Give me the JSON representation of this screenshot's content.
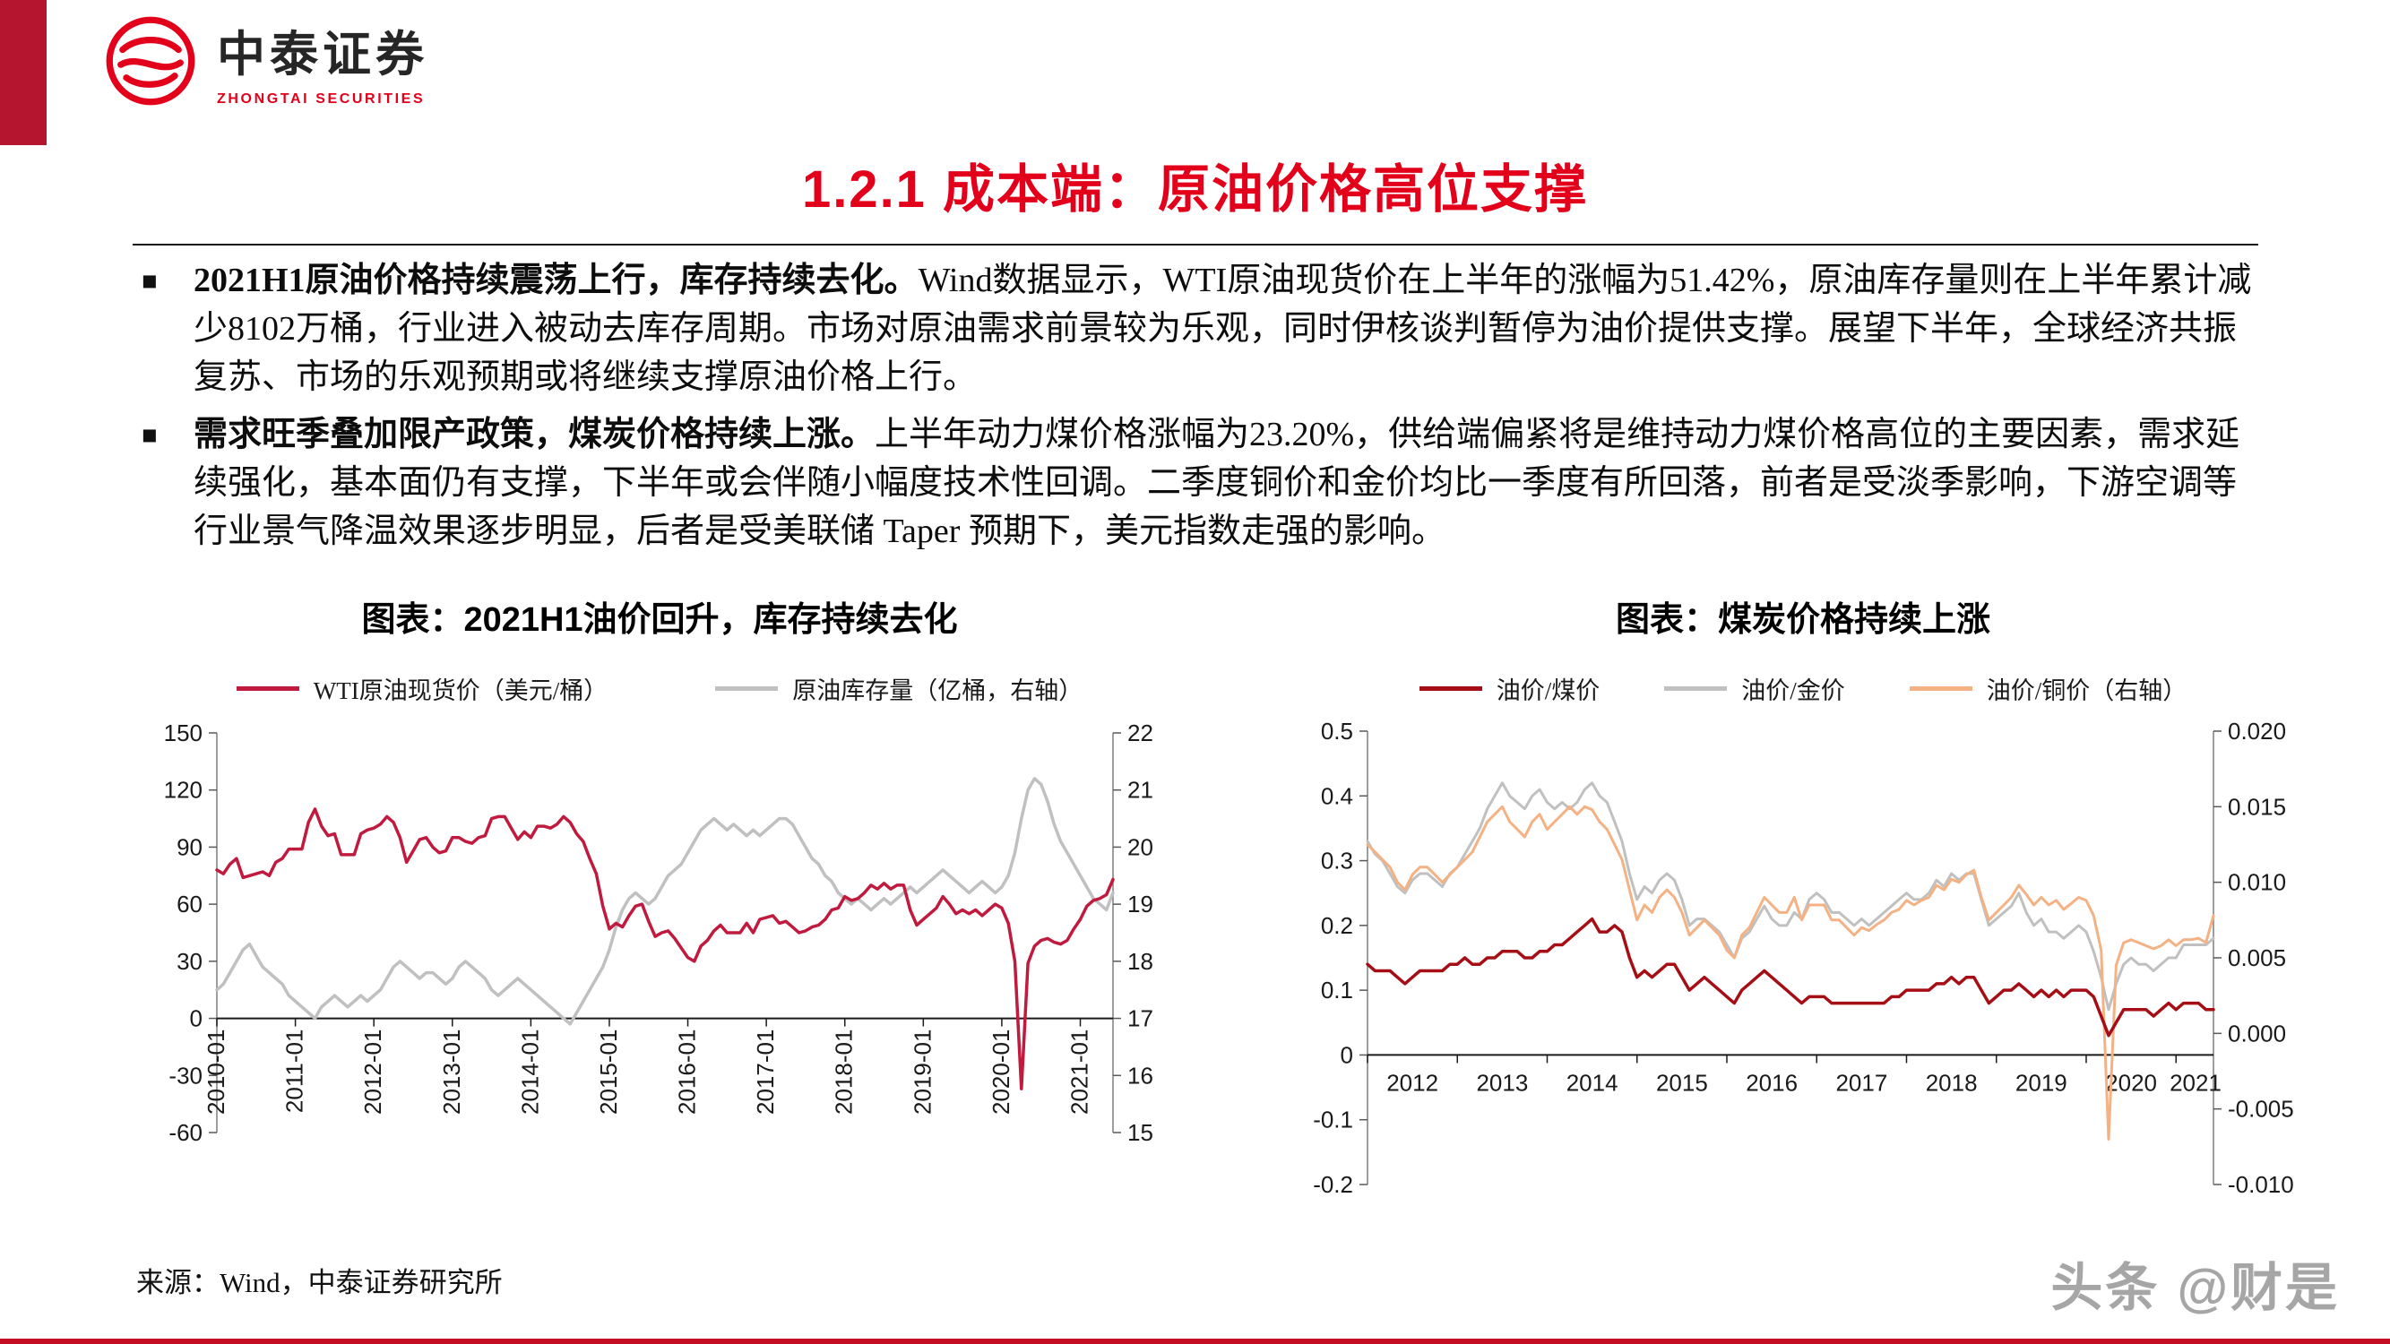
{
  "theme": {
    "accent_red": "#b5152f",
    "title_red": "#e3001b",
    "bottom_red": "#c30d23",
    "watermark_gray": "#a6a6a6"
  },
  "brand": {
    "cn": "中泰证券",
    "en": "ZHONGTAI SECURITIES"
  },
  "page": {
    "title": "1.2.1 成本端：原油价格高位支撑",
    "bullet_marker": "■",
    "source": "来源：Wind，中泰证券研究所",
    "watermark": "头条 @财是"
  },
  "bullets": [
    {
      "bold": "2021H1原油价格持续震荡上行，库存持续去化。",
      "text": "Wind数据显示，WTI原油现货价在上半年的涨幅为51.42%，原油库存量则在上半年累计减少8102万桶，行业进入被动去库存周期。市场对原油需求前景较为乐观，同时伊核谈判暂停为油价提供支撑。展望下半年，全球经济共振复苏、市场的乐观预期或将继续支撑原油价格上行。"
    },
    {
      "bold": "需求旺季叠加限产政策，煤炭价格持续上涨。",
      "text": "上半年动力煤价格涨幅为23.20%，供给端偏紧将是维持动力煤价格高位的主要因素，需求延续强化，基本面仍有支撑，下半年或会伴随小幅度技术性回调。二季度铜价和金价均比一季度有所回落，前者是受淡季影响，下游空调等行业景气降温效果逐步明显，后者是受美联储 Taper 预期下，美元指数走强的影响。"
    }
  ],
  "chart_data": [
    {
      "type": "line",
      "title": "图表：2021H1油价回升，库存持续去化",
      "x_range": {
        "start": "2010-01",
        "end": "2021-06",
        "freq": "monthly"
      },
      "rotate_x_labels": true,
      "center_x_labels": false,
      "grid": false,
      "legend": [
        {
          "label": "WTI原油现货价（美元/桶）",
          "color": "#c01a3e"
        },
        {
          "label": "原油库存量（亿桶，右轴）",
          "color": "#c0c0c0"
        }
      ],
      "axes": {
        "left": {
          "min": -60,
          "max": 150,
          "ticks": [
            "150",
            "120",
            "90",
            "60",
            "30",
            "0",
            "-30",
            "-60"
          ]
        },
        "right": {
          "min": 15,
          "max": 22,
          "ticks": [
            "22",
            "21",
            "20",
            "19",
            "18",
            "17",
            "16",
            "15"
          ]
        }
      },
      "x_ticks": [
        {
          "label": "2010-01",
          "i": 0
        },
        {
          "label": "2011-01",
          "i": 12
        },
        {
          "label": "2012-01",
          "i": 24
        },
        {
          "label": "2013-01",
          "i": 36
        },
        {
          "label": "2014-01",
          "i": 48
        },
        {
          "label": "2015-01",
          "i": 60
        },
        {
          "label": "2016-01",
          "i": 72
        },
        {
          "label": "2017-01",
          "i": 84
        },
        {
          "label": "2018-01",
          "i": 96
        },
        {
          "label": "2019-01",
          "i": 108
        },
        {
          "label": "2020-01",
          "i": 120
        },
        {
          "label": "2021-01",
          "i": 132
        }
      ],
      "series": [
        {
          "name": "原油库存量（亿桶，右轴）",
          "axis": "right",
          "color": "#c0c0c0",
          "width": 3.5,
          "values": [
            17.5,
            17.6,
            17.8,
            18.0,
            18.2,
            18.3,
            18.1,
            17.9,
            17.8,
            17.7,
            17.6,
            17.4,
            17.3,
            17.2,
            17.1,
            17.0,
            17.2,
            17.3,
            17.4,
            17.3,
            17.2,
            17.3,
            17.4,
            17.3,
            17.4,
            17.5,
            17.7,
            17.9,
            18.0,
            17.9,
            17.8,
            17.7,
            17.8,
            17.8,
            17.7,
            17.6,
            17.7,
            17.9,
            18.0,
            17.9,
            17.8,
            17.7,
            17.5,
            17.4,
            17.5,
            17.6,
            17.7,
            17.6,
            17.5,
            17.4,
            17.3,
            17.2,
            17.1,
            17.0,
            16.9,
            17.1,
            17.3,
            17.5,
            17.7,
            17.9,
            18.2,
            18.6,
            18.9,
            19.1,
            19.2,
            19.1,
            19.0,
            19.1,
            19.3,
            19.5,
            19.6,
            19.7,
            19.9,
            20.1,
            20.3,
            20.4,
            20.5,
            20.4,
            20.3,
            20.4,
            20.3,
            20.2,
            20.3,
            20.2,
            20.3,
            20.4,
            20.5,
            20.5,
            20.4,
            20.2,
            20.0,
            19.8,
            19.7,
            19.5,
            19.4,
            19.2,
            19.1,
            19.0,
            19.1,
            19.0,
            18.9,
            19.0,
            19.1,
            19.0,
            19.1,
            19.2,
            19.3,
            19.2,
            19.3,
            19.4,
            19.5,
            19.6,
            19.5,
            19.4,
            19.3,
            19.2,
            19.3,
            19.4,
            19.3,
            19.2,
            19.3,
            19.5,
            19.9,
            20.5,
            21.0,
            21.2,
            21.1,
            20.8,
            20.4,
            20.1,
            19.9,
            19.7,
            19.5,
            19.3,
            19.1,
            19.0,
            18.9,
            19.2
          ]
        },
        {
          "name": "WTI原油现货价（美元/桶）",
          "axis": "left",
          "color": "#c01a3e",
          "width": 3.5,
          "values": [
            78,
            76,
            81,
            84,
            74,
            75,
            76,
            77,
            75,
            82,
            84,
            89,
            89,
            89,
            103,
            110,
            101,
            96,
            97,
            86,
            86,
            86,
            97,
            99,
            100,
            102,
            106,
            103,
            95,
            82,
            88,
            94,
            95,
            90,
            87,
            88,
            95,
            95,
            93,
            92,
            95,
            96,
            105,
            106,
            106,
            100,
            94,
            98,
            95,
            101,
            101,
            100,
            102,
            106,
            103,
            97,
            93,
            84,
            76,
            59,
            47,
            50,
            48,
            54,
            59,
            60,
            51,
            43,
            45,
            46,
            42,
            37,
            32,
            30,
            38,
            41,
            46,
            49,
            45,
            45,
            45,
            50,
            45,
            52,
            53,
            54,
            50,
            51,
            48,
            45,
            46,
            48,
            49,
            52,
            57,
            58,
            64,
            62,
            63,
            66,
            70,
            68,
            71,
            68,
            70,
            70,
            57,
            49,
            52,
            55,
            58,
            64,
            60,
            55,
            57,
            55,
            57,
            54,
            57,
            60,
            58,
            50,
            30,
            -37,
            29,
            38,
            41,
            42,
            40,
            39,
            41,
            47,
            52,
            59,
            62,
            63,
            65,
            73
          ]
        }
      ]
    },
    {
      "type": "line",
      "title": "图表：煤炭价格持续上涨",
      "x_range": {
        "start": "2012-01",
        "end": "2021-06",
        "freq": "monthly"
      },
      "rotate_x_labels": false,
      "center_x_labels": true,
      "grid": false,
      "legend": [
        {
          "label": "油价/煤价",
          "color": "#a60e15"
        },
        {
          "label": "油价/金价",
          "color": "#c0c0c0"
        },
        {
          "label": "油价/铜价（右轴）",
          "color": "#f4b183"
        }
      ],
      "axes": {
        "left": {
          "min": -0.2,
          "max": 0.5,
          "ticks": [
            "0.5",
            "0.4",
            "0.3",
            "0.2",
            "0.1",
            "0",
            "-0.1",
            "-0.2"
          ]
        },
        "right": {
          "min": -0.01,
          "max": 0.02,
          "ticks": [
            "0.020",
            "0.015",
            "0.010",
            "0.005",
            "0.000",
            "-0.005",
            "-0.010"
          ]
        }
      },
      "x_ticks": [
        {
          "label": "2012",
          "i": 0
        },
        {
          "label": "2013",
          "i": 12
        },
        {
          "label": "2014",
          "i": 24
        },
        {
          "label": "2015",
          "i": 36
        },
        {
          "label": "2016",
          "i": 48
        },
        {
          "label": "2017",
          "i": 60
        },
        {
          "label": "2018",
          "i": 72
        },
        {
          "label": "2019",
          "i": 84
        },
        {
          "label": "2020",
          "i": 96
        },
        {
          "label": "2021",
          "i": 108
        }
      ],
      "series": [
        {
          "name": "油价/金价",
          "axis": "left",
          "color": "#c0c0c0",
          "width": 3,
          "values": [
            0.33,
            0.31,
            0.3,
            0.28,
            0.26,
            0.25,
            0.27,
            0.28,
            0.28,
            0.27,
            0.26,
            0.28,
            0.29,
            0.31,
            0.33,
            0.35,
            0.38,
            0.4,
            0.42,
            0.4,
            0.39,
            0.38,
            0.4,
            0.41,
            0.39,
            0.38,
            0.39,
            0.38,
            0.39,
            0.41,
            0.42,
            0.4,
            0.39,
            0.36,
            0.33,
            0.28,
            0.24,
            0.26,
            0.25,
            0.27,
            0.28,
            0.27,
            0.24,
            0.2,
            0.21,
            0.21,
            0.2,
            0.19,
            0.17,
            0.15,
            0.18,
            0.19,
            0.21,
            0.23,
            0.21,
            0.2,
            0.2,
            0.22,
            0.21,
            0.24,
            0.25,
            0.24,
            0.22,
            0.22,
            0.21,
            0.2,
            0.21,
            0.2,
            0.21,
            0.22,
            0.23,
            0.24,
            0.25,
            0.24,
            0.24,
            0.25,
            0.27,
            0.26,
            0.28,
            0.27,
            0.28,
            0.28,
            0.24,
            0.2,
            0.21,
            0.22,
            0.23,
            0.25,
            0.22,
            0.2,
            0.21,
            0.19,
            0.19,
            0.18,
            0.19,
            0.2,
            0.19,
            0.16,
            0.12,
            0.07,
            0.11,
            0.14,
            0.15,
            0.14,
            0.14,
            0.13,
            0.14,
            0.15,
            0.15,
            0.17,
            0.17,
            0.17,
            0.17,
            0.18
          ]
        },
        {
          "name": "油价/铜价（右轴）",
          "axis": "right",
          "color": "#f4b183",
          "width": 3,
          "values": [
            0.0125,
            0.012,
            0.0115,
            0.011,
            0.01,
            0.0095,
            0.0105,
            0.011,
            0.011,
            0.0105,
            0.01,
            0.0105,
            0.011,
            0.0115,
            0.012,
            0.013,
            0.014,
            0.0145,
            0.015,
            0.014,
            0.0135,
            0.013,
            0.014,
            0.0145,
            0.0135,
            0.014,
            0.0145,
            0.015,
            0.0145,
            0.015,
            0.0148,
            0.014,
            0.0135,
            0.0125,
            0.0115,
            0.0095,
            0.0075,
            0.0085,
            0.008,
            0.009,
            0.0095,
            0.009,
            0.008,
            0.0065,
            0.007,
            0.0075,
            0.007,
            0.0065,
            0.0055,
            0.005,
            0.0065,
            0.007,
            0.008,
            0.009,
            0.0085,
            0.008,
            0.008,
            0.009,
            0.0075,
            0.0085,
            0.0085,
            0.0085,
            0.0075,
            0.0075,
            0.007,
            0.0065,
            0.007,
            0.0068,
            0.0072,
            0.0075,
            0.008,
            0.0082,
            0.0088,
            0.0085,
            0.0088,
            0.009,
            0.0098,
            0.0095,
            0.0102,
            0.01,
            0.0105,
            0.0108,
            0.009,
            0.0075,
            0.008,
            0.0085,
            0.009,
            0.0098,
            0.0092,
            0.0085,
            0.009,
            0.0085,
            0.0088,
            0.0082,
            0.0086,
            0.009,
            0.0088,
            0.0078,
            0.0055,
            -0.007,
            0.0045,
            0.006,
            0.0062,
            0.006,
            0.0058,
            0.0056,
            0.0058,
            0.0062,
            0.0058,
            0.0062,
            0.0062,
            0.0063,
            0.006,
            0.0078
          ]
        },
        {
          "name": "油价/煤价",
          "axis": "left",
          "color": "#a60e15",
          "width": 3.5,
          "values": [
            0.14,
            0.13,
            0.13,
            0.13,
            0.12,
            0.11,
            0.12,
            0.13,
            0.13,
            0.13,
            0.13,
            0.14,
            0.14,
            0.15,
            0.14,
            0.14,
            0.15,
            0.15,
            0.16,
            0.16,
            0.16,
            0.15,
            0.15,
            0.16,
            0.16,
            0.17,
            0.17,
            0.18,
            0.19,
            0.2,
            0.21,
            0.19,
            0.19,
            0.2,
            0.19,
            0.15,
            0.12,
            0.13,
            0.12,
            0.13,
            0.14,
            0.14,
            0.12,
            0.1,
            0.11,
            0.12,
            0.11,
            0.1,
            0.09,
            0.08,
            0.1,
            0.11,
            0.12,
            0.13,
            0.12,
            0.11,
            0.1,
            0.09,
            0.08,
            0.09,
            0.09,
            0.09,
            0.08,
            0.08,
            0.08,
            0.08,
            0.08,
            0.08,
            0.08,
            0.08,
            0.09,
            0.09,
            0.1,
            0.1,
            0.1,
            0.1,
            0.11,
            0.11,
            0.12,
            0.11,
            0.12,
            0.12,
            0.1,
            0.08,
            0.09,
            0.1,
            0.1,
            0.11,
            0.1,
            0.09,
            0.1,
            0.09,
            0.1,
            0.09,
            0.1,
            0.1,
            0.1,
            0.09,
            0.06,
            0.03,
            0.05,
            0.07,
            0.07,
            0.07,
            0.07,
            0.06,
            0.07,
            0.08,
            0.07,
            0.08,
            0.08,
            0.08,
            0.07,
            0.07
          ]
        }
      ]
    }
  ]
}
